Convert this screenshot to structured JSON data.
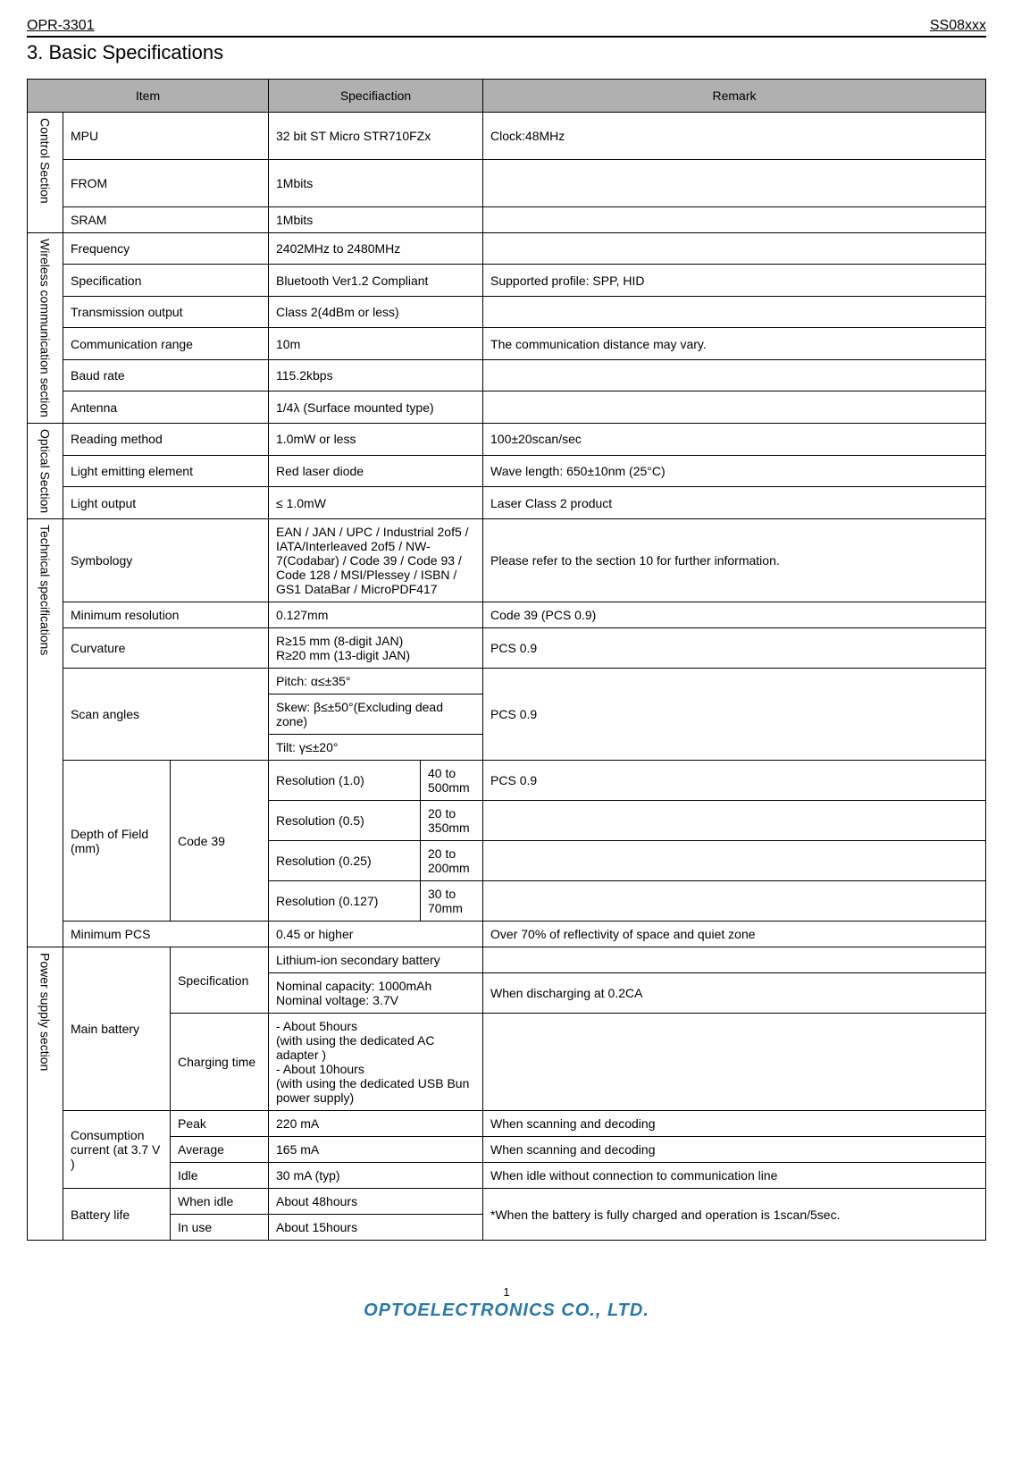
{
  "header": {
    "left": "OPR-3301",
    "right": "SS08xxx"
  },
  "title": "3.  Basic Specifications",
  "columns": {
    "item": "Item",
    "spec": "Specifiaction",
    "remark": "Remark"
  },
  "sections": [
    {
      "name": "Control Section",
      "rows": [
        {
          "item": "MPU",
          "spec": "32 bit ST Micro STR710FZx",
          "remark": "Clock:48MHz",
          "pad": true
        },
        {
          "item": "FROM",
          "spec": "1Mbits",
          "remark": "",
          "pad": true
        },
        {
          "item": "SRAM",
          "spec": "1Mbits",
          "remark": ""
        }
      ]
    },
    {
      "name": "Wireless communication section",
      "rows": [
        {
          "item": "Frequency",
          "spec": "2402MHz to 2480MHz",
          "remark": ""
        },
        {
          "item": "Specification",
          "spec": "Bluetooth Ver1.2 Compliant",
          "remark": "Supported profile: SPP, HID"
        },
        {
          "item": "Transmission output",
          "spec": "Class 2(4dBm or less)",
          "remark": ""
        },
        {
          "item": "Communication range",
          "spec": "10m",
          "remark": "The communication distance may vary."
        },
        {
          "item": "Baud rate",
          "spec": "115.2kbps",
          "remark": ""
        },
        {
          "item": "Antenna",
          "spec": "1/4λ (Surface mounted type)",
          "remark": ""
        }
      ]
    },
    {
      "name": "Optical Section",
      "rows": [
        {
          "item": "Reading method",
          "spec": "1.0mW or less",
          "remark": "100±20scan/sec"
        },
        {
          "item": "Light emitting element",
          "spec": "Red laser diode",
          "remark": "Wave length: 650±10nm (25°C)"
        },
        {
          "item": "Light output",
          "spec": "≤ 1.0mW",
          "remark": "Laser Class 2 product"
        }
      ]
    }
  ],
  "tech": {
    "name": "Technical specifications",
    "symbology": {
      "item": "Symbology",
      "spec": "EAN / JAN / UPC / Industrial 2of5 / IATA/Interleaved 2of5 / NW-7(Codabar) / Code 39 / Code 93 / Code 128 / MSI/Plessey / ISBN / GS1 DataBar / MicroPDF417",
      "remark": "Please refer to the section 10 for further information."
    },
    "minres": {
      "item": "Minimum resolution",
      "spec": "0.127mm",
      "remark": "Code 39 (PCS 0.9)"
    },
    "curv": {
      "item": "Curvature",
      "spec": "R≥15 mm (8-digit JAN)\nR≥20 mm (13-digit JAN)",
      "remark": "PCS 0.9"
    },
    "scan": {
      "item": "Scan angles",
      "pitch": "Pitch: α≤±35°",
      "skew": "Skew: β≤±50°(Excluding dead zone)",
      "tilt": "Tilt: γ≤±20°",
      "remark": "PCS 0.9"
    },
    "dof": {
      "item": "Depth of Field (mm)",
      "code": "Code 39",
      "rows": [
        {
          "res": "Resolution (1.0)",
          "range": "40 to 500mm",
          "remark": "PCS 0.9"
        },
        {
          "res": "Resolution (0.5)",
          "range": "20 to 350mm",
          "remark": ""
        },
        {
          "res": "Resolution (0.25)",
          "range": "20 to 200mm",
          "remark": ""
        },
        {
          "res": "Resolution (0.127)",
          "range": "30 to 70mm",
          "remark": ""
        }
      ]
    },
    "minpcs": {
      "item": "Minimum PCS",
      "spec": "0.45 or higher",
      "remark": "Over 70% of reflectivity of space and quiet zone"
    }
  },
  "power": {
    "name": "Power supply section",
    "mainbat": {
      "item": "Main battery",
      "spec_label": "Specification",
      "spec_rows": [
        {
          "spec": "Lithium-ion secondary battery",
          "remark": ""
        },
        {
          "spec": "Nominal capacity: 1000mAh\nNominal voltage: 3.7V",
          "remark": "When discharging at 0.2CA"
        }
      ],
      "charge_label": "Charging time",
      "charge_spec": "- About 5hours\n(with using the dedicated AC adapter )\n- About 10hours\n(with using the dedicated USB Bun power supply)",
      "charge_remark": ""
    },
    "consumption": {
      "item": "Consumption current (at 3.7 V )",
      "rows": [
        {
          "label": "Peak",
          "spec": "220 mA",
          "remark": "When scanning and decoding"
        },
        {
          "label": "Average",
          "spec": "165 mA",
          "remark": "When scanning and decoding"
        },
        {
          "label": "Idle",
          "spec": "30 mA (typ)",
          "remark": "When idle without connection to communication line"
        }
      ]
    },
    "battlife": {
      "item": "Battery life",
      "rows": [
        {
          "label": "When idle",
          "spec": "About 48hours"
        },
        {
          "label": "In use",
          "spec": "About 15hours"
        }
      ],
      "remark": "*When the battery is fully charged and operation is 1scan/5sec."
    }
  },
  "footer": {
    "page": "1",
    "logo": "OPTOELECTRONICS CO., LTD."
  }
}
